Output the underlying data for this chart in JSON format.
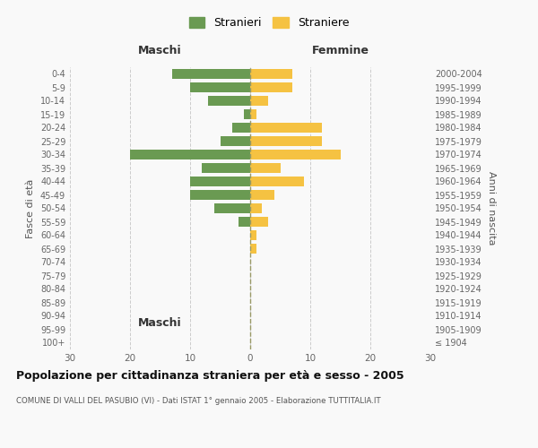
{
  "age_groups": [
    "100+",
    "95-99",
    "90-94",
    "85-89",
    "80-84",
    "75-79",
    "70-74",
    "65-69",
    "60-64",
    "55-59",
    "50-54",
    "45-49",
    "40-44",
    "35-39",
    "30-34",
    "25-29",
    "20-24",
    "15-19",
    "10-14",
    "5-9",
    "0-4"
  ],
  "birth_years": [
    "≤ 1904",
    "1905-1909",
    "1910-1914",
    "1915-1919",
    "1920-1924",
    "1925-1929",
    "1930-1934",
    "1935-1939",
    "1940-1944",
    "1945-1949",
    "1950-1954",
    "1955-1959",
    "1960-1964",
    "1965-1969",
    "1970-1974",
    "1975-1979",
    "1980-1984",
    "1985-1989",
    "1990-1994",
    "1995-1999",
    "2000-2004"
  ],
  "maschi": [
    0,
    0,
    0,
    0,
    0,
    0,
    0,
    0,
    0,
    2,
    6,
    10,
    10,
    8,
    20,
    5,
    3,
    1,
    7,
    10,
    13
  ],
  "femmine": [
    0,
    0,
    0,
    0,
    0,
    0,
    0,
    1,
    1,
    3,
    2,
    4,
    9,
    5,
    15,
    12,
    12,
    1,
    3,
    7,
    7
  ],
  "maschi_color": "#6a9a52",
  "femmine_color": "#f5c242",
  "title": "Popolazione per cittadinanza straniera per età e sesso - 2005",
  "subtitle": "COMUNE DI VALLI DEL PASUBIO (VI) - Dati ISTAT 1° gennaio 2005 - Elaborazione TUTTITALIA.IT",
  "header_left": "Maschi",
  "header_right": "Femmine",
  "ylabel_left": "Fasce di età",
  "ylabel_right": "Anni di nascita",
  "legend_maschi": "Stranieri",
  "legend_femmine": "Straniere",
  "xlim": 30,
  "xticks": [
    -30,
    -20,
    -10,
    0,
    10,
    20,
    30
  ],
  "xticklabels": [
    "30",
    "20",
    "10",
    "0",
    "10",
    "20",
    "30"
  ],
  "background_color": "#f9f9f9",
  "grid_color": "#cccccc",
  "bar_height": 0.75
}
